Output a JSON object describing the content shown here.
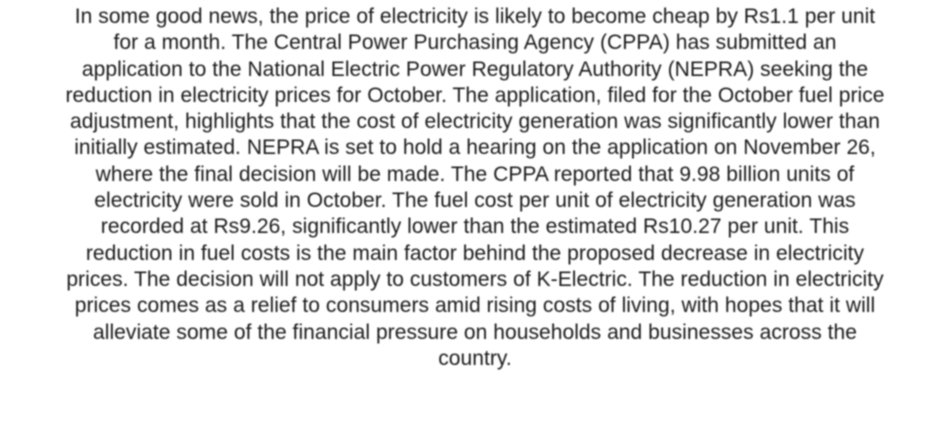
{
  "article": {
    "lines": [
      "In some good news, the price of electricity is likely to become cheap by Rs1.1 per unit",
      "for a month. The Central Power Purchasing Agency (CPPA) has submitted an",
      "application to the National Electric Power Regulatory Authority (NEPRA) seeking the",
      "reduction in electricity prices for October. The application, filed for the October fuel price",
      "adjustment, highlights that the cost of electricity generation was significantly lower than",
      "initially estimated. NEPRA is set to hold a hearing on the application on November 26,",
      "where the final decision will be made. The CPPA reported that 9.98 billion units of",
      "electricity were sold in October. The fuel cost per unit of electricity generation was",
      "recorded at Rs9.26, significantly lower than the estimated Rs10.27 per unit. This",
      "reduction in fuel costs is the main factor behind the proposed decrease in electricity",
      "prices. The decision will not apply to customers of K-Electric. The reduction in electricity",
      "prices comes as a relief to consumers amid rising costs of living, with hopes that it will",
      "alleviate some of the financial pressure on households and businesses across the",
      "country."
    ]
  },
  "colors": {
    "background": "#ffffff",
    "text": "#1a1a1a"
  }
}
